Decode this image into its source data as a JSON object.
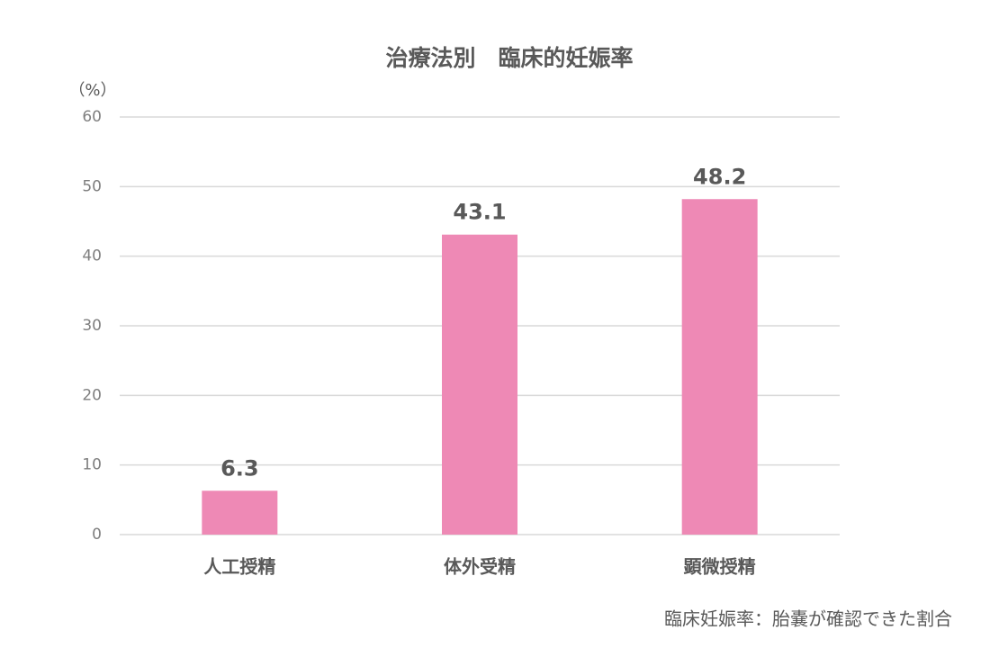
{
  "chart_data": {
    "type": "bar",
    "title": "治療法別　臨床的妊娠率",
    "y_label": "（%）",
    "categories": [
      "人工授精",
      "体外受精",
      "顕微授精"
    ],
    "values": [
      6.3,
      43.1,
      48.2
    ],
    "color": "#ee89b5",
    "ylim": [
      0,
      60
    ],
    "yticks": [
      0,
      10,
      20,
      30,
      40,
      50,
      60
    ],
    "grid": true,
    "note": "臨床妊娠率：胎嚢が確認できた割合"
  }
}
